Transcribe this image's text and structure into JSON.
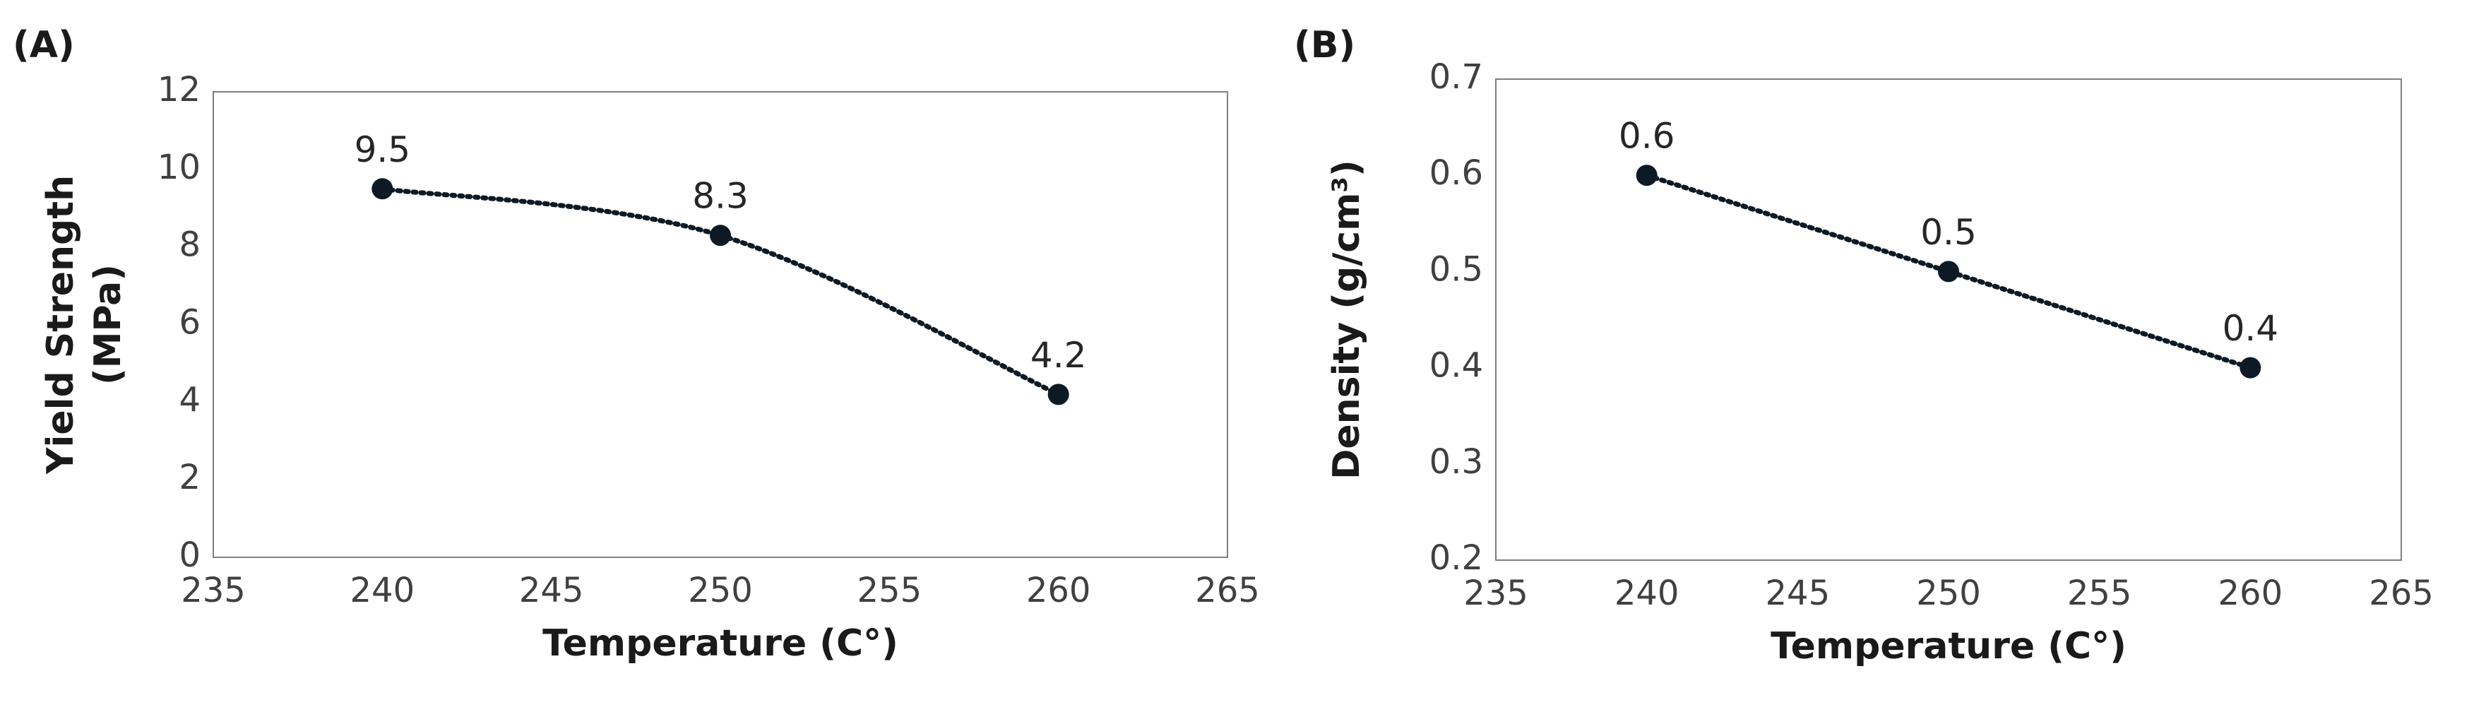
{
  "chart_data": [
    {
      "type": "line",
      "panel_label": "(A)",
      "smooth": true,
      "color": "#0d1a26",
      "xlabel": "Temperature (C°)",
      "ylabel": [
        "Yield Strength",
        "(MPa)"
      ],
      "x": [
        240,
        250,
        260
      ],
      "values": [
        9.5,
        8.3,
        4.2
      ],
      "xlim": [
        235,
        265
      ],
      "xticks": [
        235,
        240,
        245,
        250,
        255,
        260,
        265
      ],
      "ylim": [
        0,
        12
      ],
      "yticks": [
        0,
        2,
        4,
        6,
        8,
        10,
        12
      ],
      "grid": false
    },
    {
      "type": "line",
      "panel_label": "(B)",
      "smooth": false,
      "color": "#0d1a26",
      "xlabel": "Temperature (C°)",
      "ylabel": [
        "Density (g/cm³)"
      ],
      "x": [
        240,
        250,
        260
      ],
      "values": [
        0.6,
        0.5,
        0.4
      ],
      "xlim": [
        235,
        265
      ],
      "xticks": [
        235,
        240,
        245,
        250,
        255,
        260,
        265
      ],
      "ylim": [
        0.2,
        0.7
      ],
      "yticks": [
        0.2,
        0.3,
        0.4,
        0.5,
        0.6,
        0.7
      ],
      "grid": false
    }
  ]
}
